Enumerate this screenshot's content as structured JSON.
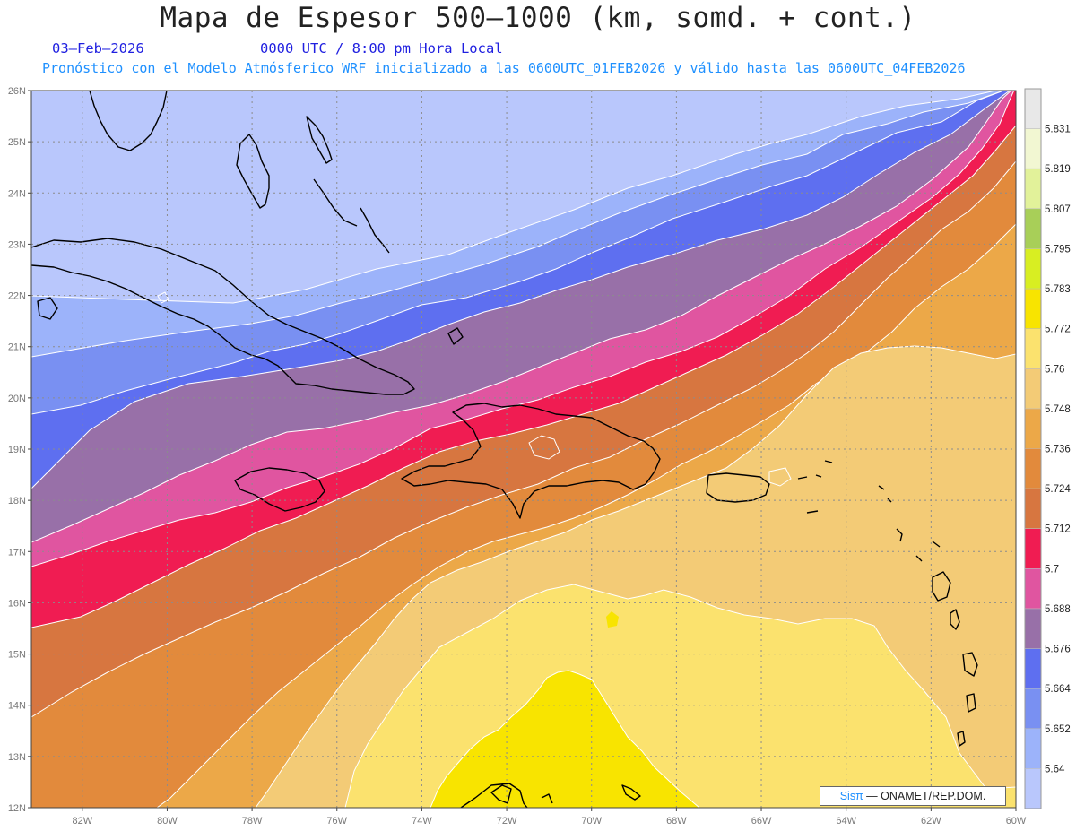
{
  "header": {
    "title": "Mapa de Espesor 500—1000 (km, somd. + cont.)",
    "date": "03—Feb—2026",
    "time": "0000 UTC / 8:00 pm Hora Local",
    "info": "Pronóstico con el Modelo Atmósferico WRF inicializado a las 0600UTC_01FEB2026 y válido hasta las  0600UTC_04FEB2026"
  },
  "map": {
    "lat_labels": [
      "26N",
      "25N",
      "24N",
      "23N",
      "22N",
      "21N",
      "20N",
      "19N",
      "18N",
      "17N",
      "16N",
      "15N",
      "14N",
      "13N",
      "12N"
    ],
    "lon_labels": [
      "82W",
      "80W",
      "78W",
      "76W",
      "74W",
      "72W",
      "70W",
      "68W",
      "66W",
      "64W",
      "62W",
      "60W"
    ],
    "lat_range": [
      12,
      26
    ],
    "lon_range": [
      -83.2,
      -60
    ],
    "grid": "dotted",
    "colors": {
      "coast": "#000000",
      "contour": "#ffffff",
      "grid": "#8c8c8c"
    }
  },
  "colorbar": {
    "labels": [
      "5.831",
      "5.819",
      "5.807",
      "5.795",
      "5.783",
      "5.772",
      "5.76",
      "5.748",
      "5.736",
      "5.724",
      "5.712",
      "5.7",
      "5.688",
      "5.676",
      "5.664",
      "5.652",
      "5.64"
    ],
    "colors": [
      "#e8e8e8",
      "#f2f7d2",
      "#e2f29a",
      "#a8cf58",
      "#d8ee22",
      "#f8e400",
      "#fbe26e",
      "#f3cb76",
      "#eca848",
      "#e28a3c",
      "#d77640",
      "#f01c52",
      "#e055a0",
      "#9870a8",
      "#5e6ff0",
      "#7990f2",
      "#9cb3fa",
      "#b9c7fc"
    ]
  },
  "credit": {
    "brand": "Sisπ",
    "text": " — ONAMET/REP.DOM."
  }
}
